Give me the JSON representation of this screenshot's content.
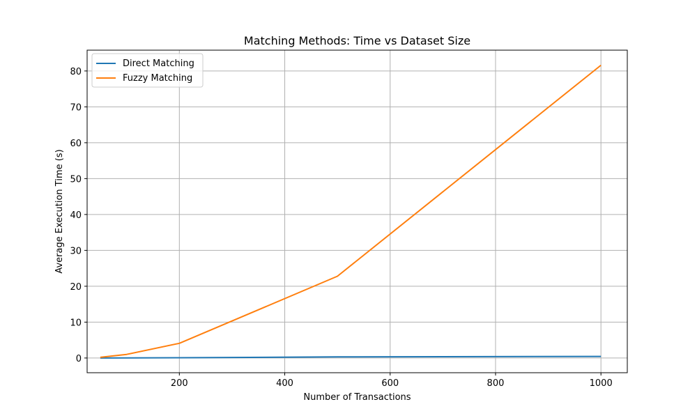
{
  "chart_data": {
    "type": "line",
    "title": "Matching Methods: Time vs Dataset Size",
    "xlabel": "Number of Transactions",
    "ylabel": "Average Execution Time (s)",
    "xlim": [
      25,
      1050
    ],
    "ylim": [
      -4.1,
      85.8
    ],
    "xticks": [
      200,
      400,
      600,
      800,
      1000
    ],
    "yticks": [
      0,
      10,
      20,
      30,
      40,
      50,
      60,
      70,
      80
    ],
    "grid": true,
    "legend_position": "upper-left",
    "x": [
      50,
      100,
      200,
      500,
      1000
    ],
    "series": [
      {
        "name": "Direct Matching",
        "color": "#1f77b4",
        "values": [
          0.0,
          0.02,
          0.08,
          0.3,
          0.45
        ]
      },
      {
        "name": "Fuzzy Matching",
        "color": "#ff7f0e",
        "values": [
          0.2,
          1.0,
          4.1,
          22.8,
          81.6
        ]
      }
    ]
  }
}
